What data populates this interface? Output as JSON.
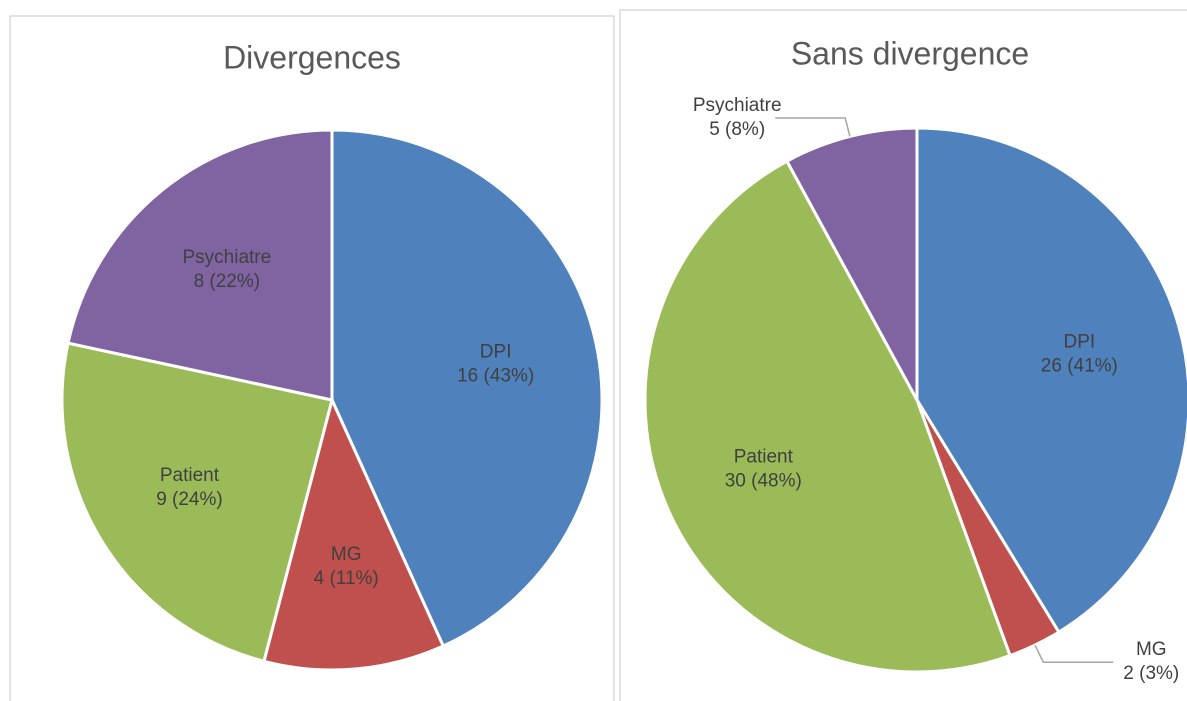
{
  "chart_data": [
    {
      "type": "pie",
      "title": "Divergences",
      "categories": [
        "DPI",
        "MG",
        "Patient",
        "Psychiatre"
      ],
      "values": [
        16,
        4,
        9,
        8
      ],
      "value_labels": [
        "16 (43%)",
        "4 (11%)",
        "9 (24%)",
        "8 (22%)"
      ],
      "colors": [
        "#4f81bd",
        "#c0504d",
        "#9bbb59",
        "#8064a2"
      ]
    },
    {
      "type": "pie",
      "title": "Sans divergence",
      "categories": [
        "DPI",
        "MG",
        "Patient",
        "Psychiatre"
      ],
      "values": [
        26,
        2,
        30,
        5
      ],
      "value_labels": [
        "26 (41%)",
        "2 (3%)",
        "30 (48%)",
        "5 (8%)"
      ],
      "colors": [
        "#4f81bd",
        "#c0504d",
        "#9bbb59",
        "#8064a2"
      ]
    }
  ]
}
